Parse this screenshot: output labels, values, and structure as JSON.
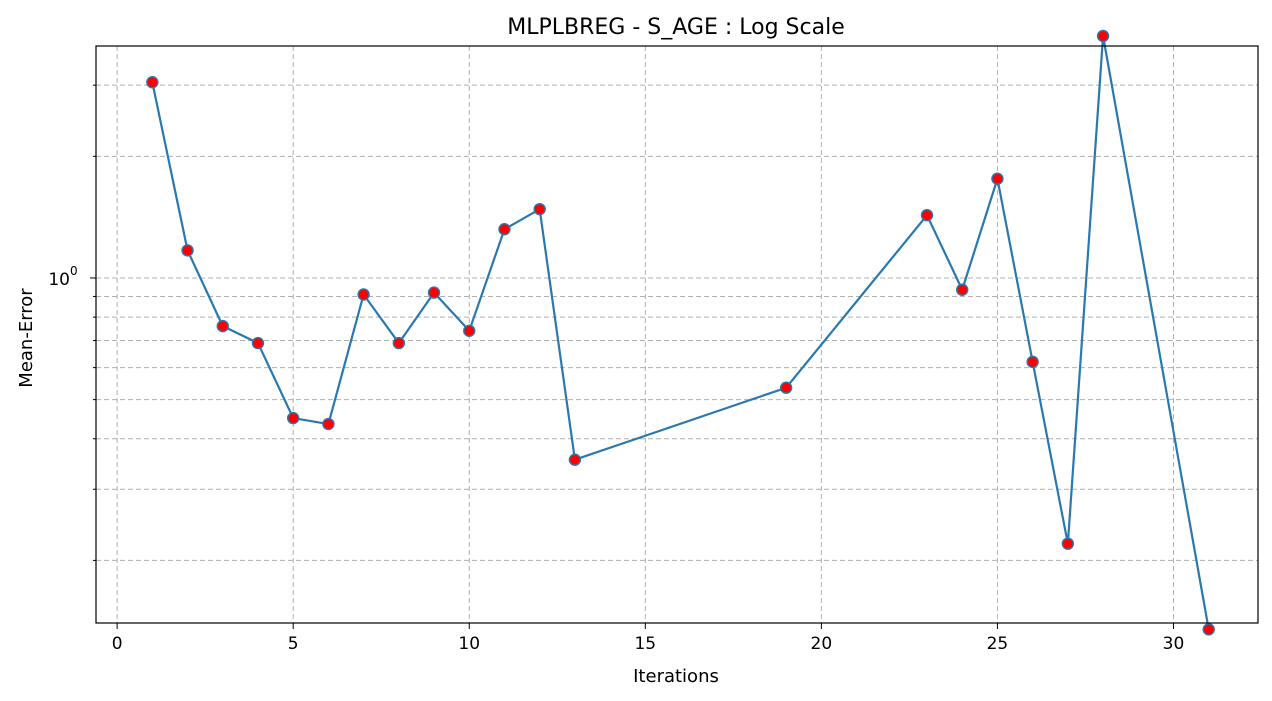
{
  "chart_data": {
    "type": "line",
    "title": "MLPLBREG - S_AGE : Log Scale",
    "xlabel": "Iterations",
    "ylabel": "Mean-Error",
    "y_scale": "log",
    "grid": true,
    "legend": "none",
    "xlim": [
      -0.6,
      32.4
    ],
    "ylim": [
      0.14,
      3.75
    ],
    "x_ticks": [
      0,
      5,
      10,
      15,
      20,
      25,
      30
    ],
    "x_tick_labels": [
      "0",
      "5",
      "10",
      "15",
      "20",
      "25",
      "30"
    ],
    "y_major_ticks": [
      1.0
    ],
    "y_major_tick_labels": [
      "10",
      "0"
    ],
    "y_minor_ticks": [
      0.2,
      0.3,
      0.4,
      0.5,
      0.6,
      0.7,
      0.8,
      0.9,
      2,
      3
    ],
    "line_color": "#2a78b0",
    "marker_face": "#ff0000",
    "marker_edge": "#2a78b0",
    "series": [
      {
        "x": [
          1,
          2,
          3,
          4,
          5,
          6,
          7,
          8,
          9,
          10,
          11,
          12,
          13,
          19,
          23,
          24,
          25,
          26,
          27,
          28,
          31
        ],
        "values": [
          3.05,
          1.17,
          0.76,
          0.69,
          0.45,
          0.435,
          0.91,
          0.69,
          0.92,
          0.74,
          1.32,
          1.48,
          0.355,
          0.535,
          1.43,
          0.935,
          1.76,
          0.62,
          0.22,
          3.97,
          0.135
        ]
      }
    ]
  }
}
